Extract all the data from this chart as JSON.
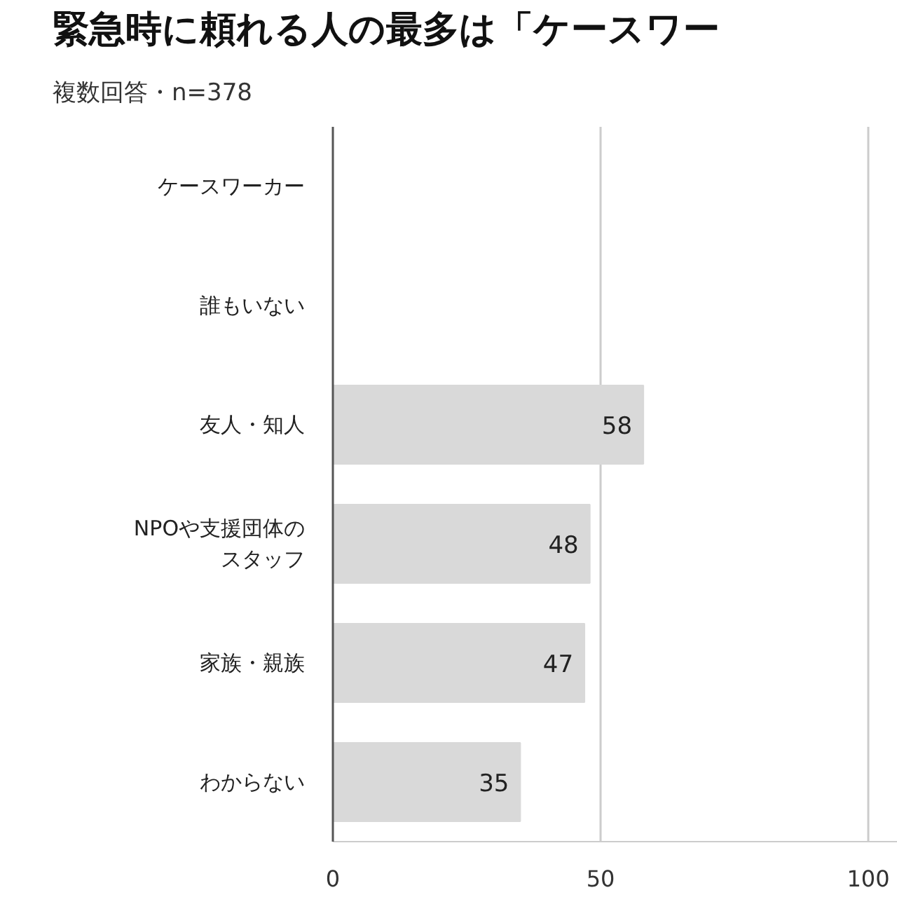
{
  "chart_data": {
    "type": "bar",
    "orientation": "horizontal",
    "title": "緊急時に頼れる人の最多は「ケースワー",
    "subtitle": "複数回答・n=378",
    "categories": [
      "ケースワーカー",
      "誰もいない",
      "友人・知人",
      "NPOや支援団体のスタッフ",
      "家族・親族",
      "わからない"
    ],
    "values": [
      null,
      null,
      58,
      48,
      47,
      35
    ],
    "colors": [
      "#e8412f",
      "#d9d9d9",
      "#d9d9d9",
      "#d9d9d9",
      "#d9d9d9",
      "#d9d9d9"
    ],
    "xlim": [
      0,
      105.5
    ],
    "xticks": [
      0,
      50,
      100
    ],
    "grid": "x",
    "data_labels": true
  }
}
